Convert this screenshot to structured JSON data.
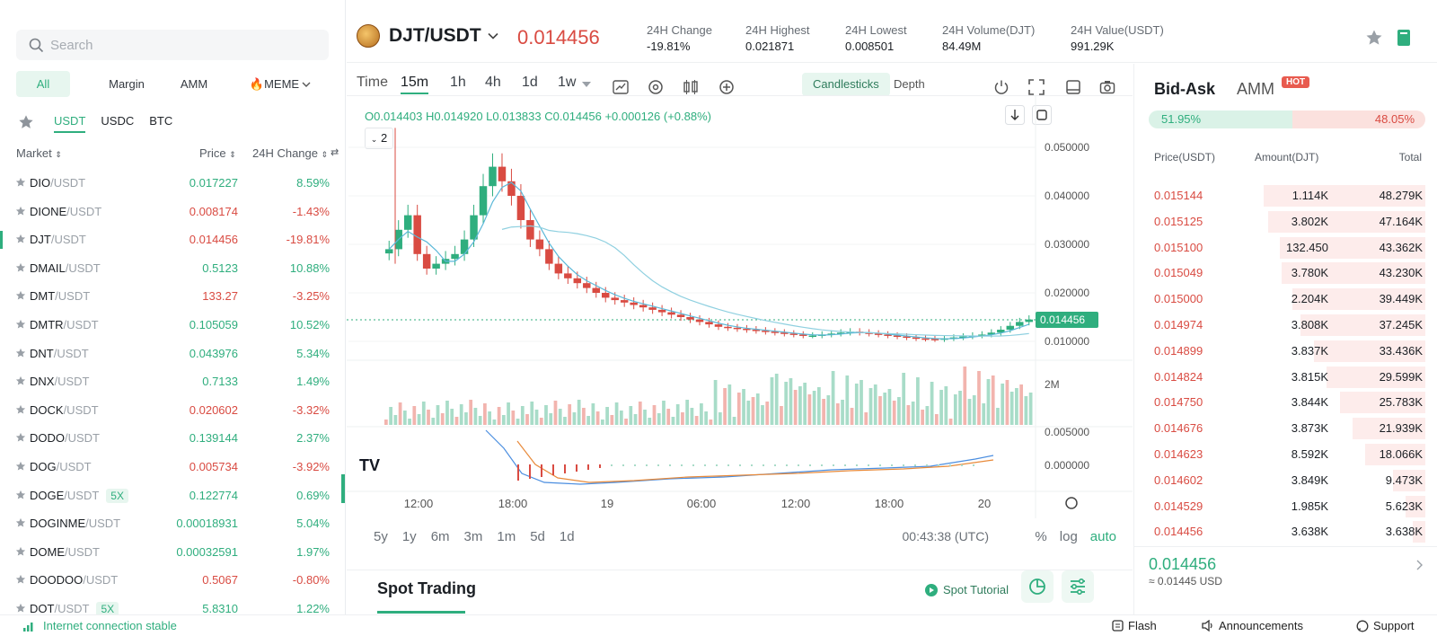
{
  "search": {
    "placeholder": "Search"
  },
  "categories": [
    {
      "label": "All",
      "active": true
    },
    {
      "label": "Margin",
      "active": false
    },
    {
      "label": "AMM",
      "active": false
    },
    {
      "label": "🔥MEME",
      "active": false
    }
  ],
  "quotes": [
    {
      "label": "USDT",
      "active": true
    },
    {
      "label": "USDC",
      "active": false
    },
    {
      "label": "BTC",
      "active": false
    }
  ],
  "market_header": {
    "market": "Market",
    "price": "Price",
    "change": "24H Change"
  },
  "markets": [
    {
      "base": "DIO",
      "quote": "/USDT",
      "lev": "",
      "price": "0.017227",
      "change": "8.59%",
      "up": true
    },
    {
      "base": "DIONE",
      "quote": "/USDT",
      "lev": "",
      "price": "0.008174",
      "change": "-1.43%",
      "up": false
    },
    {
      "base": "DJT",
      "quote": "/USDT",
      "lev": "",
      "price": "0.014456",
      "change": "-19.81%",
      "up": false,
      "selected": true
    },
    {
      "base": "DMAIL",
      "quote": "/USDT",
      "lev": "",
      "price": "0.5123",
      "change": "10.88%",
      "up": true
    },
    {
      "base": "DMT",
      "quote": "/USDT",
      "lev": "",
      "price": "133.27",
      "change": "-3.25%",
      "up": false
    },
    {
      "base": "DMTR",
      "quote": "/USDT",
      "lev": "",
      "price": "0.105059",
      "change": "10.52%",
      "up": true
    },
    {
      "base": "DNT",
      "quote": "/USDT",
      "lev": "",
      "price": "0.043976",
      "change": "5.34%",
      "up": true
    },
    {
      "base": "DNX",
      "quote": "/USDT",
      "lev": "",
      "price": "0.7133",
      "change": "1.49%",
      "up": true
    },
    {
      "base": "DOCK",
      "quote": "/USDT",
      "lev": "",
      "price": "0.020602",
      "change": "-3.32%",
      "up": false
    },
    {
      "base": "DODO",
      "quote": "/USDT",
      "lev": "",
      "price": "0.139144",
      "change": "2.37%",
      "up": true
    },
    {
      "base": "DOG",
      "quote": "/USDT",
      "lev": "",
      "price": "0.005734",
      "change": "-3.92%",
      "up": false
    },
    {
      "base": "DOGE",
      "quote": "/USDT",
      "lev": "5X",
      "price": "0.122774",
      "change": "0.69%",
      "up": true
    },
    {
      "base": "DOGINME",
      "quote": "/USDT",
      "lev": "",
      "price": "0.00018931",
      "change": "5.04%",
      "up": true
    },
    {
      "base": "DOME",
      "quote": "/USDT",
      "lev": "",
      "price": "0.00032591",
      "change": "1.97%",
      "up": true
    },
    {
      "base": "DOODOO",
      "quote": "/USDT",
      "lev": "",
      "price": "0.5067",
      "change": "-0.80%",
      "up": false
    },
    {
      "base": "DOT",
      "quote": "/USDT",
      "lev": "5X",
      "price": "5.8310",
      "change": "1.22%",
      "up": true
    }
  ],
  "header": {
    "pair": "DJT/USDT",
    "last_price": "0.014456",
    "stats": [
      {
        "label": "24H Change",
        "value": "-19.81%",
        "color": "red"
      },
      {
        "label": "24H Highest",
        "value": "0.021871",
        "color": ""
      },
      {
        "label": "24H Lowest",
        "value": "0.008501",
        "color": ""
      },
      {
        "label": "24H Volume(DJT)",
        "value": "84.49M",
        "color": ""
      },
      {
        "label": "24H Value(USDT)",
        "value": "991.29K",
        "color": ""
      }
    ]
  },
  "toolbar": {
    "time_label": "Time",
    "intervals": [
      "15m",
      "1h",
      "4h",
      "1d",
      "1w"
    ],
    "active_interval": "15m",
    "candlesticks": "Candlesticks",
    "depth": "Depth"
  },
  "ohlc": {
    "text": "O0.014403  H0.014920  L0.013833  C0.014456  +0.000126 (+0.88%)"
  },
  "indicator_chip": "2",
  "chart_data": {
    "type": "candlestick",
    "price_axis": [
      "0.050000",
      "0.040000",
      "0.030000",
      "0.020000",
      "0.010000"
    ],
    "last_price_label": "0.014456",
    "volume_axis": [
      "2M"
    ],
    "macd_axis": [
      "0.005000",
      "0.000000"
    ],
    "time_axis": [
      "12:00",
      "18:00",
      "19",
      "06:00",
      "12:00",
      "18:00",
      "20"
    ],
    "close_series": [
      0.029,
      0.033,
      0.036,
      0.028,
      0.025,
      0.026,
      0.027,
      0.028,
      0.031,
      0.036,
      0.042,
      0.046,
      0.043,
      0.04,
      0.035,
      0.031,
      0.029,
      0.026,
      0.024,
      0.023,
      0.022,
      0.021,
      0.02,
      0.019,
      0.0185,
      0.018,
      0.0175,
      0.017,
      0.0165,
      0.016,
      0.0155,
      0.015,
      0.0145,
      0.014,
      0.0135,
      0.013,
      0.0128,
      0.0126,
      0.0124,
      0.0122,
      0.012,
      0.0118,
      0.0116,
      0.0114,
      0.0112,
      0.0112,
      0.0114,
      0.0116,
      0.0118,
      0.012,
      0.0118,
      0.0116,
      0.0114,
      0.0112,
      0.011,
      0.0108,
      0.0106,
      0.0105,
      0.0104,
      0.0106,
      0.0108,
      0.011,
      0.0112,
      0.0114,
      0.0118,
      0.0124,
      0.0132,
      0.014,
      0.0145
    ],
    "ylim": [
      0.005,
      0.055
    ]
  },
  "range_buttons": [
    "5y",
    "1y",
    "6m",
    "3m",
    "1m",
    "5d",
    "1d"
  ],
  "clock": "00:43:38 (UTC)",
  "scale_options": [
    {
      "label": "%",
      "on": false
    },
    {
      "label": "log",
      "on": false
    },
    {
      "label": "auto",
      "on": true
    }
  ],
  "spot": {
    "title": "Spot Trading",
    "tutorial": "Spot Tutorial"
  },
  "book": {
    "tab_bidask": "Bid-Ask",
    "tab_amm": "AMM",
    "hot": "HOT",
    "buy_ratio": "51.95%",
    "sell_ratio": "48.05%",
    "buy_ratio_value": 0.5195,
    "col_price": "Price(USDT)",
    "col_amount": "Amount(DJT)",
    "col_total": "Total",
    "asks": [
      {
        "price": "0.015144",
        "amount": "1.114K",
        "total": "48.279K",
        "depth": 1.0
      },
      {
        "price": "0.015125",
        "amount": "3.802K",
        "total": "47.164K",
        "depth": 0.97
      },
      {
        "price": "0.015100",
        "amount": "132.450",
        "total": "43.362K",
        "depth": 0.9
      },
      {
        "price": "0.015049",
        "amount": "3.780K",
        "total": "43.230K",
        "depth": 0.89
      },
      {
        "price": "0.015000",
        "amount": "2.204K",
        "total": "39.449K",
        "depth": 0.82
      },
      {
        "price": "0.014974",
        "amount": "3.808K",
        "total": "37.245K",
        "depth": 0.77
      },
      {
        "price": "0.014899",
        "amount": "3.837K",
        "total": "33.436K",
        "depth": 0.69
      },
      {
        "price": "0.014824",
        "amount": "3.815K",
        "total": "29.599K",
        "depth": 0.61
      },
      {
        "price": "0.014750",
        "amount": "3.844K",
        "total": "25.783K",
        "depth": 0.53
      },
      {
        "price": "0.014676",
        "amount": "3.873K",
        "total": "21.939K",
        "depth": 0.45
      },
      {
        "price": "0.014623",
        "amount": "8.592K",
        "total": "18.066K",
        "depth": 0.37
      },
      {
        "price": "0.014602",
        "amount": "3.849K",
        "total": "9.473K",
        "depth": 0.2
      },
      {
        "price": "0.014529",
        "amount": "1.985K",
        "total": "5.623K",
        "depth": 0.12
      },
      {
        "price": "0.014456",
        "amount": "3.638K",
        "total": "3.638K",
        "depth": 0.08
      }
    ],
    "mid_price": "0.014456",
    "mid_usd": "≈ 0.01445 USD"
  },
  "footer": {
    "connection": "Internet connection stable",
    "flash": "Flash",
    "announcements": "Announcements",
    "support": "Support"
  },
  "colors": {
    "green": "#2fae7e",
    "red": "#d94b42",
    "ma": "#5bb8d8"
  }
}
